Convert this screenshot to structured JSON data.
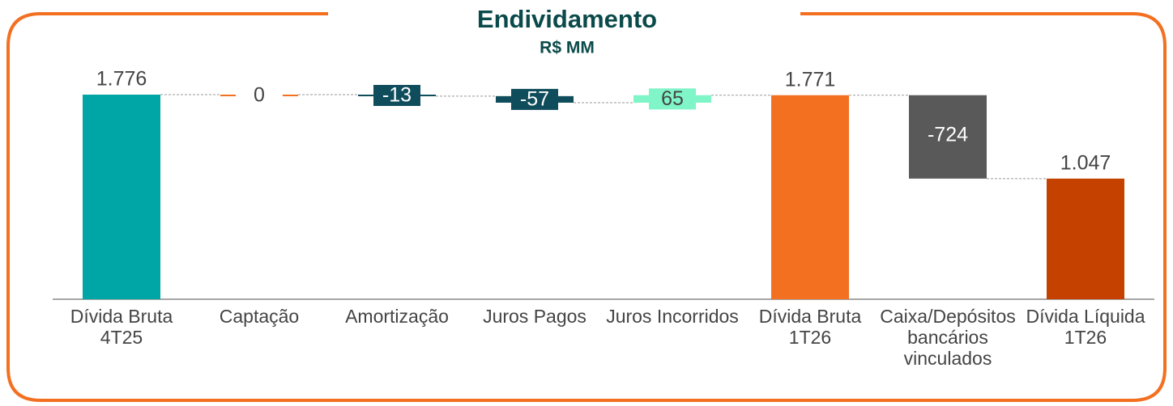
{
  "chart_data": {
    "type": "waterfall",
    "title": "Endividamento",
    "subtitle": "R$ MM",
    "categories": [
      "Dívida Bruta 4T25",
      "Captação",
      "Amortização",
      "Juros Pagos",
      "Juros Incorridos",
      "Dívida Bruta 1T26",
      "Caixa/Depósitos bancários vinculados",
      "Dívida Líquida 1T26"
    ],
    "values": [
      1776,
      0,
      -13,
      -57,
      65,
      1771,
      -724,
      1047
    ],
    "value_labels": [
      "1.776",
      "0",
      "-13",
      "-57",
      "65",
      "1.771",
      "-724",
      "1.047"
    ],
    "measure": [
      "absolute",
      "relative",
      "relative",
      "relative",
      "relative",
      "absolute",
      "relative",
      "absolute"
    ],
    "colors": [
      "#00a6a6",
      "#f37021",
      "#0f4c5c",
      "#0f4c5c",
      "#7ff5c8",
      "#f37021",
      "#595959",
      "#c54100"
    ]
  }
}
